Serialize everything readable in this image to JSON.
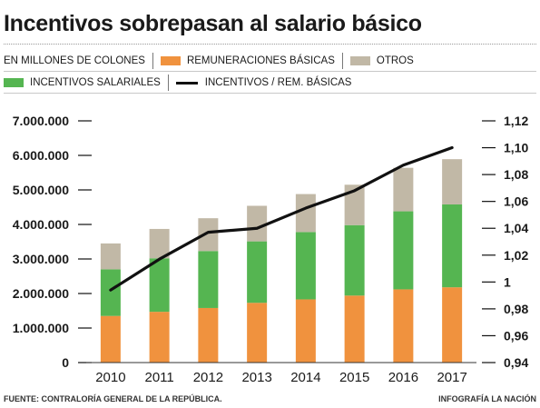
{
  "header": {
    "title": "Incentivos sobrepasan al salario básico"
  },
  "legend": {
    "units": "EN MILLONES DE COLONES",
    "items": [
      {
        "label": "REMUNERACIONES BÁSICAS",
        "color": "#f0923e"
      },
      {
        "label": "OTROS",
        "color": "#c1b8a6"
      },
      {
        "label": "INCENTIVOS SALARIALES",
        "color": "#55b551"
      },
      {
        "label": "INCENTIVOS  / REM. BÁSICAS",
        "color": "#111111"
      }
    ]
  },
  "chart_data": {
    "type": "bar",
    "stacked": true,
    "categories": [
      "2010",
      "2011",
      "2012",
      "2013",
      "2014",
      "2015",
      "2016",
      "2017"
    ],
    "series": [
      {
        "name": "REMUNERACIONES BÁSICAS",
        "color": "#f0923e",
        "values": [
          1350000,
          1470000,
          1580000,
          1730000,
          1830000,
          1940000,
          2120000,
          2180000
        ]
      },
      {
        "name": "INCENTIVOS SALARIALES",
        "color": "#55b551",
        "values": [
          1350000,
          1550000,
          1650000,
          1780000,
          1950000,
          2040000,
          2260000,
          2400000
        ]
      },
      {
        "name": "OTROS",
        "color": "#c1b8a6",
        "values": [
          750000,
          850000,
          950000,
          1030000,
          1100000,
          1170000,
          1260000,
          1310000
        ]
      }
    ],
    "line": {
      "name": "INCENTIVOS  / REM. BÁSICAS",
      "color": "#111111",
      "axis": "right",
      "values": [
        0.994,
        1.017,
        1.037,
        1.04,
        1.055,
        1.068,
        1.087,
        1.1
      ]
    },
    "y_left": {
      "range": [
        0,
        7000000
      ],
      "ticks": [
        0,
        1000000,
        2000000,
        3000000,
        4000000,
        5000000,
        6000000,
        7000000
      ],
      "tick_labels": [
        "0",
        "1.000.000",
        "2.000.000",
        "3.000.000",
        "4.000.000",
        "5.000.000",
        "6.000.000",
        "7.000.000"
      ]
    },
    "y_right": {
      "range": [
        0.94,
        1.12
      ],
      "ticks": [
        0.94,
        0.96,
        0.98,
        1.0,
        1.02,
        1.04,
        1.06,
        1.08,
        1.1,
        1.12
      ],
      "tick_labels": [
        "0,94",
        "0,96",
        "0,98",
        "1",
        "1,02",
        "1,04",
        "1,06",
        "1,08",
        "1,10",
        "1,12"
      ]
    },
    "grid": false
  },
  "footer": {
    "source": "FUENTE: CONTRALORÍA GENERAL DE LA REPÚBLICA.",
    "credit": "INFOGRAFÍA LA NACIÓN"
  }
}
